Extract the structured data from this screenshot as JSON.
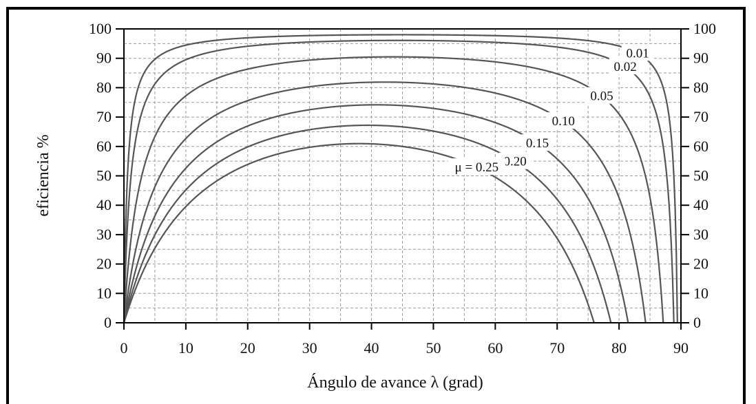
{
  "chart_data": {
    "type": "line",
    "title": "",
    "xlabel": "Ángulo de avance λ (grad)",
    "ylabel": "eficiencia %",
    "xlim": [
      0,
      90
    ],
    "ylim": [
      0,
      100
    ],
    "xticks": [
      0,
      10,
      20,
      30,
      40,
      50,
      60,
      70,
      80,
      90
    ],
    "yticks": [
      0,
      10,
      20,
      30,
      40,
      50,
      60,
      70,
      80,
      90,
      100
    ],
    "grid": true,
    "right_axis_ticks": true,
    "series": [
      {
        "name": "0.01",
        "label": "0.01",
        "mu": 0.01
      },
      {
        "name": "0.02",
        "label": "0.02",
        "mu": 0.02
      },
      {
        "name": "0.05",
        "label": "0.05",
        "mu": 0.05
      },
      {
        "name": "0.10",
        "label": "0.10",
        "mu": 0.1
      },
      {
        "name": "0.15",
        "label": "0.15",
        "mu": 0.15
      },
      {
        "name": "0.20",
        "label": "0.20",
        "mu": 0.2
      },
      {
        "name": "0.25",
        "label": "μ = 0.25",
        "mu": 0.25
      }
    ],
    "curve_color": "#555555"
  }
}
